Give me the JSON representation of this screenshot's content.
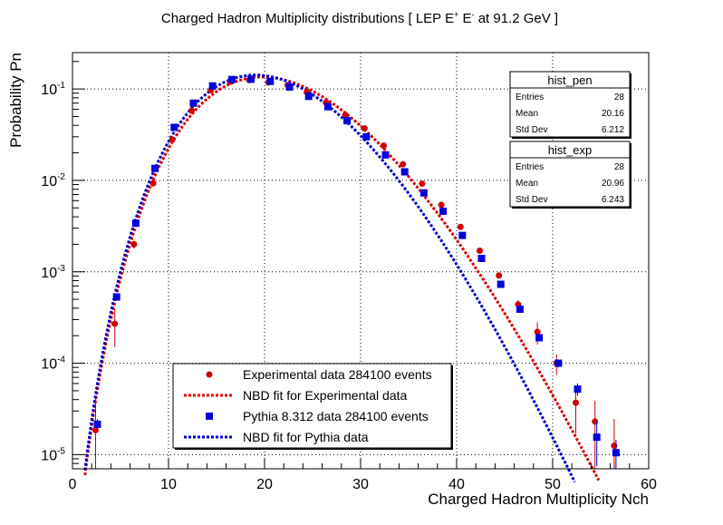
{
  "chart_data": {
    "type": "scatter",
    "title": "Charged Hadron Multiplicity distributions [ LEP E",
    "title_sup1": "+",
    "title_mid": " E",
    "title_sup2": "-",
    "title_end": " at 91.2 GeV ]",
    "xlabel": "Charged Hadron Multiplicity Nch",
    "ylabel": "Probability Pn",
    "xlim": [
      0,
      60
    ],
    "ylim": [
      7e-06,
      0.25
    ],
    "y_scale": "log",
    "grid": true,
    "x_ticks": [
      0,
      10,
      20,
      30,
      40,
      50,
      60
    ],
    "y_ticks": [
      {
        "base": "10",
        "exp": "-5",
        "value": 1e-05
      },
      {
        "base": "10",
        "exp": "-4",
        "value": 0.0001
      },
      {
        "base": "10",
        "exp": "-3",
        "value": 0.001
      },
      {
        "base": "10",
        "exp": "-2",
        "value": 0.01
      },
      {
        "base": "10",
        "exp": "-1",
        "value": 0.1
      }
    ],
    "series": [
      {
        "name": "Experimental data 284100 events",
        "kind": "points",
        "marker": "circle",
        "color": "#cc0000",
        "x": [
          2.5,
          4.5,
          6.5,
          8.5,
          10.5,
          12.5,
          14.5,
          16.5,
          18.5,
          20.5,
          22.5,
          24.5,
          26.5,
          28.5,
          30.5,
          32.5,
          34.5,
          36.5,
          38.5,
          40.5,
          42.5,
          44.5,
          46.5,
          48.5,
          50.5,
          52.5,
          54.5,
          56.5
        ],
        "y": [
          1.85e-05,
          0.00027,
          0.002,
          0.0093,
          0.028,
          0.058,
          0.097,
          0.12,
          0.125,
          0.118,
          0.11,
          0.092,
          0.071,
          0.052,
          0.037,
          0.024,
          0.015,
          0.0092,
          0.0054,
          0.0031,
          0.0017,
          0.00091,
          0.00044,
          0.00022,
          0.0001,
          3.7e-05,
          2.3e-05,
          1.25e-05
        ],
        "err": [
          2.5e-05,
          0.00012,
          0.0002,
          0.0004,
          0.0008,
          0.001,
          0.001,
          0.001,
          0.001,
          0.001,
          0.001,
          0.001,
          0.001,
          0.0008,
          0.0006,
          0.0005,
          0.0004,
          0.0003,
          0.0002,
          0.00015,
          0.0001,
          7e-05,
          5e-05,
          6e-05,
          2.5e-05,
          2e-05,
          1.6e-05,
          1.2e-05
        ]
      },
      {
        "name": "NBD fit for Experimental data",
        "kind": "curve",
        "color": "#dd0000",
        "dashed": true,
        "nbar": 20.96,
        "k": 29.5
      },
      {
        "name": "Pythia 8.312 data 284100 events",
        "kind": "points",
        "marker": "square",
        "color": "#0000dd",
        "x": [
          2.5,
          4.5,
          6.5,
          8.5,
          10.5,
          12.5,
          14.5,
          16.5,
          18.5,
          20.5,
          22.5,
          24.5,
          26.5,
          28.5,
          30.5,
          32.5,
          34.5,
          36.5,
          38.5,
          40.5,
          42.5,
          44.5,
          46.5,
          48.5,
          50.5,
          52.5,
          54.5,
          56.5
        ],
        "y": [
          2.15e-05,
          0.00053,
          0.0034,
          0.0135,
          0.038,
          0.07,
          0.108,
          0.127,
          0.128,
          0.121,
          0.105,
          0.083,
          0.064,
          0.045,
          0.03,
          0.019,
          0.0124,
          0.0073,
          0.0046,
          0.0025,
          0.0014,
          0.00073,
          0.00039,
          0.00019,
          0.0001,
          5.2e-05,
          1.55e-05,
          1.05e-05
        ],
        "err": [
          3e-06,
          2e-05,
          5e-05,
          0.0001,
          0.0002,
          0.0002,
          0.0002,
          0.0002,
          0.0002,
          0.0002,
          0.0002,
          0.0002,
          0.0002,
          0.0002,
          0.0002,
          0.0001,
          0.0001,
          0.0001,
          8e-05,
          6e-05,
          4e-05,
          3e-05,
          2e-05,
          1.5e-05,
          1e-05,
          8e-06,
          8e-06,
          4e-06
        ]
      },
      {
        "name": "NBD fit for Pythia data",
        "kind": "curve",
        "color": "#0000cc",
        "dashed": true,
        "nbar": 20.16,
        "k": 33
      }
    ],
    "legend_placement": "bottom-center",
    "stat_boxes": [
      {
        "title": "hist_pen",
        "rows": [
          {
            "label": "Entries",
            "value": "28"
          },
          {
            "label": "Mean",
            "value": "20.16"
          },
          {
            "label": "Std Dev",
            "value": "6.212"
          }
        ]
      },
      {
        "title": "hist_exp",
        "rows": [
          {
            "label": "Entries",
            "value": "28"
          },
          {
            "label": "Mean",
            "value": "20.96"
          },
          {
            "label": "Std Dev",
            "value": "6.243"
          }
        ]
      }
    ]
  }
}
